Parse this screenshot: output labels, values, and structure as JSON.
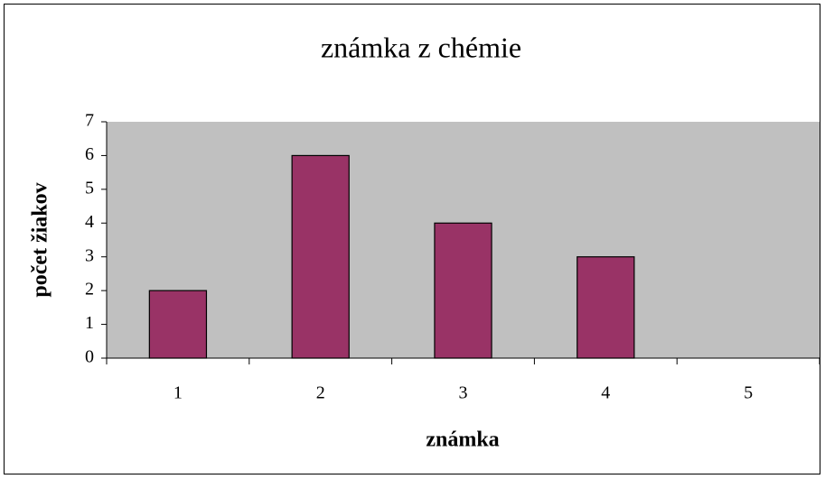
{
  "chart_data": {
    "type": "bar",
    "title": "známka z chémie",
    "x_label": "známka",
    "y_label": "počet žiakov",
    "categories": [
      "1",
      "2",
      "3",
      "4",
      "5"
    ],
    "values": [
      2,
      6,
      4,
      3,
      0
    ],
    "color": "#993366",
    "plot_background": "#c0c0c0",
    "ylim": [
      0,
      7
    ],
    "yticks": [
      0,
      1,
      2,
      3,
      4,
      5,
      6,
      7
    ],
    "grid": false
  }
}
